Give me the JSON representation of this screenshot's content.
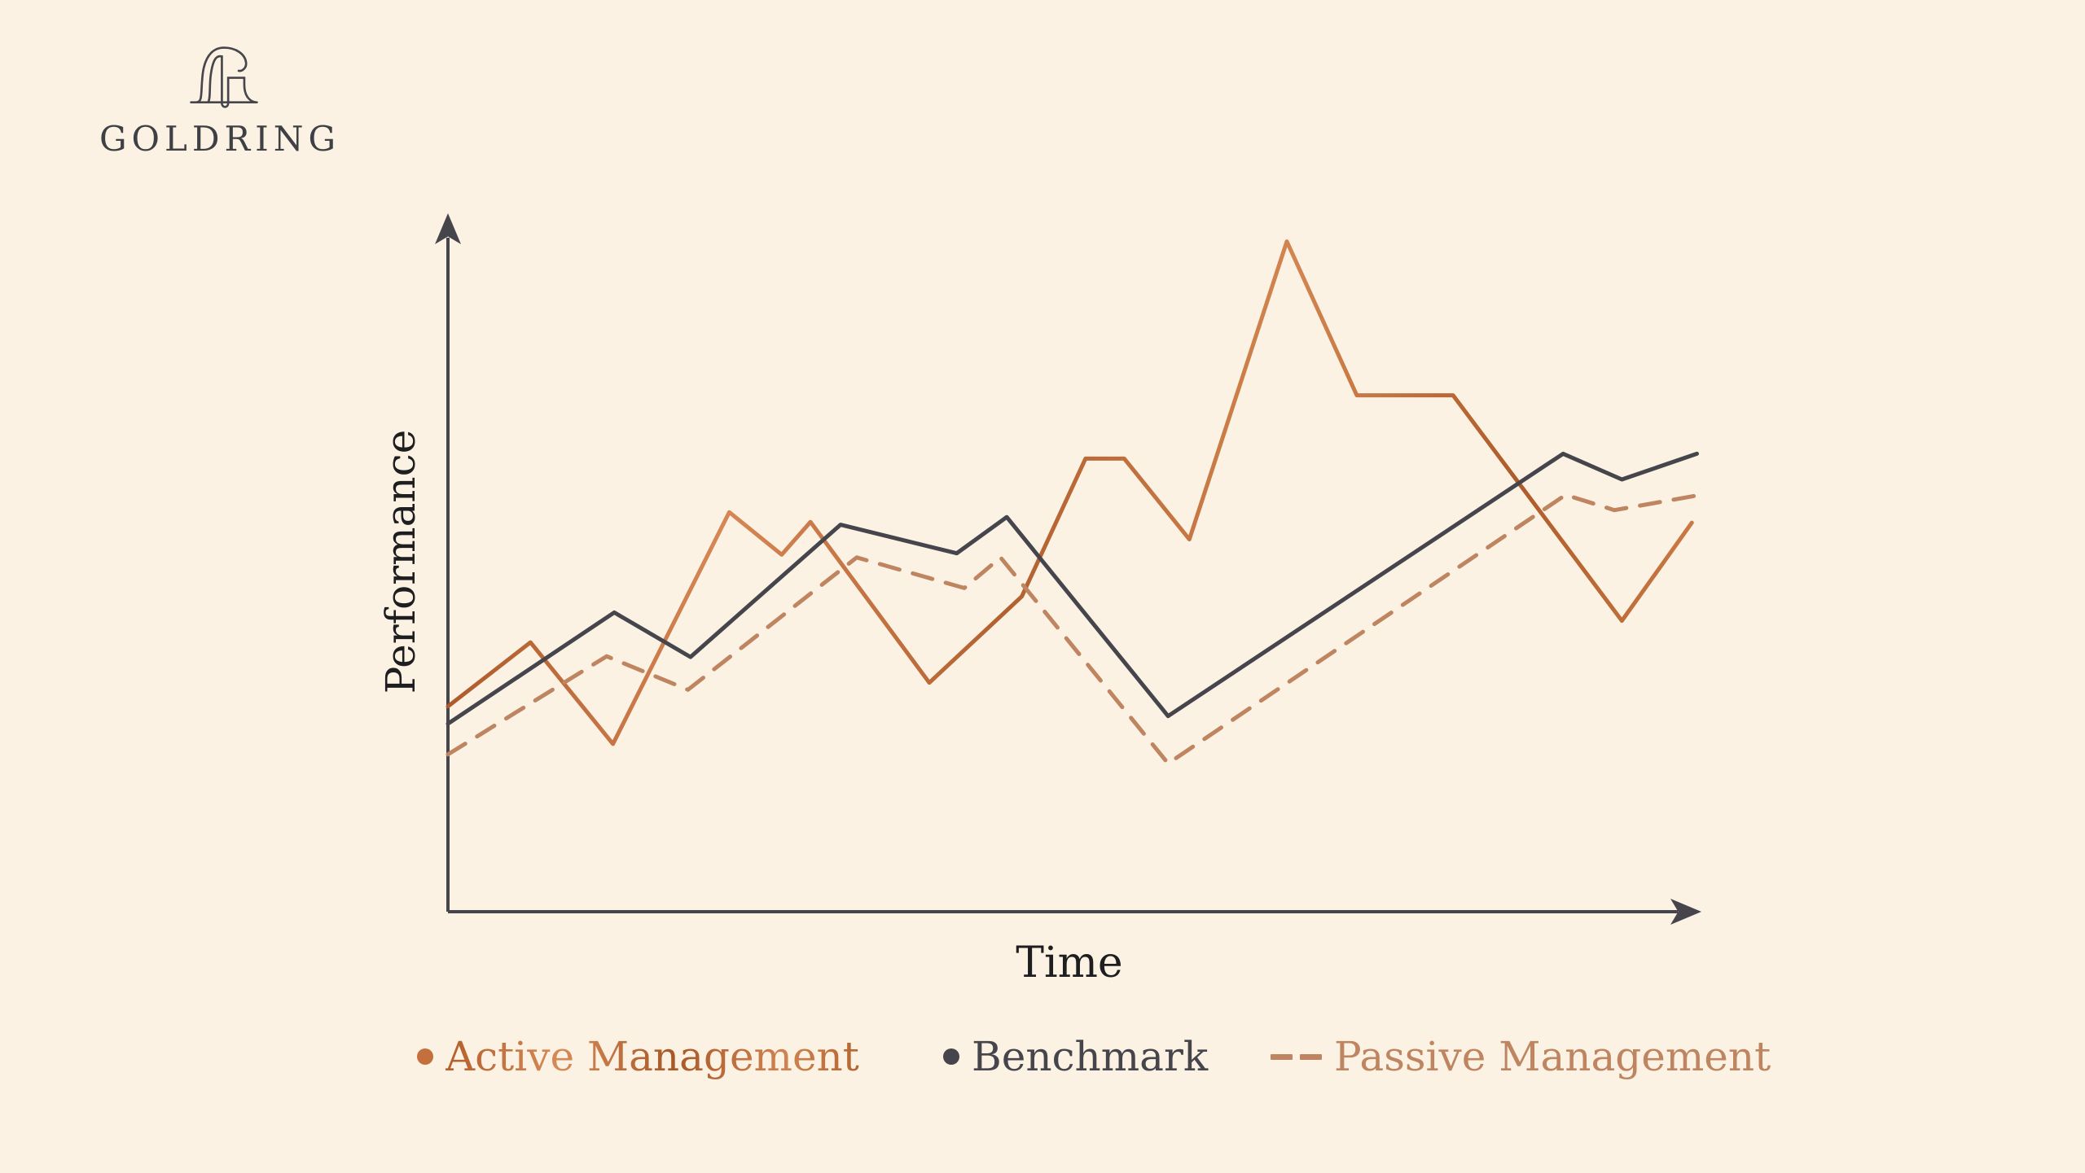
{
  "brand": {
    "name": "GOLDRING"
  },
  "chart": {
    "ylabel": "Performance",
    "xlabel": "Time"
  },
  "legend": [
    {
      "label": "Active Management",
      "marker": "dot",
      "color": "#C4703C"
    },
    {
      "label": "Benchmark",
      "marker": "dot",
      "color": "#45454B"
    },
    {
      "label": "Passive Management",
      "marker": "dashes",
      "color": "#BE8560"
    }
  ],
  "chart_data": {
    "type": "line",
    "title": "",
    "xlabel": "Time",
    "ylabel": "Performance",
    "xlim": [
      0,
      100
    ],
    "ylim": [
      0,
      100
    ],
    "grid": false,
    "axis_arrows": true,
    "legend_position": "bottom",
    "series": [
      {
        "name": "Active Management",
        "color": "#C4703C",
        "style": "solid",
        "texture": "copper",
        "points": [
          [
            0,
            29.5
          ],
          [
            6.6,
            38.7
          ],
          [
            13.2,
            24.1
          ],
          [
            22.5,
            57.4
          ],
          [
            26.7,
            51.3
          ],
          [
            29.0,
            56.0
          ],
          [
            38.5,
            32.9
          ],
          [
            45.9,
            45.3
          ],
          [
            51.0,
            65.1
          ],
          [
            54.1,
            65.1
          ],
          [
            59.3,
            53.5
          ],
          [
            67.1,
            96.3
          ],
          [
            72.7,
            74.2
          ],
          [
            80.4,
            74.2
          ],
          [
            93.9,
            41.8
          ],
          [
            99.5,
            55.9
          ]
        ]
      },
      {
        "name": "Benchmark",
        "color": "#45454B",
        "style": "solid",
        "texture": "none",
        "points": [
          [
            0,
            27.0
          ],
          [
            13.3,
            43.0
          ],
          [
            19.4,
            36.6
          ],
          [
            31.4,
            55.6
          ],
          [
            40.7,
            51.5
          ],
          [
            44.7,
            56.7
          ],
          [
            57.6,
            28.1
          ],
          [
            89.2,
            65.8
          ],
          [
            93.9,
            62.1
          ],
          [
            99.9,
            65.8
          ]
        ]
      },
      {
        "name": "Passive Management",
        "color": "#BE8560",
        "style": "dashed",
        "texture": "none",
        "points": [
          [
            0,
            22.6
          ],
          [
            12.7,
            36.7
          ],
          [
            19.2,
            31.9
          ],
          [
            32.7,
            50.9
          ],
          [
            41.3,
            46.5
          ],
          [
            44.2,
            50.9
          ],
          [
            57.6,
            21.3
          ],
          [
            89.4,
            59.9
          ],
          [
            93.3,
            57.7
          ],
          [
            99.9,
            59.8
          ]
        ]
      }
    ]
  }
}
